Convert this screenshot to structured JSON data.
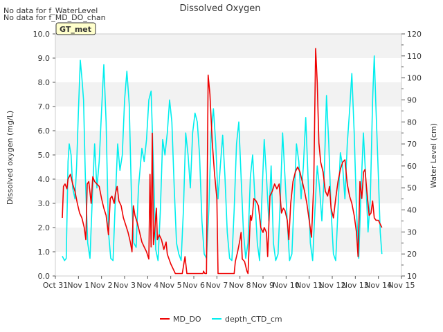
{
  "chart_data": {
    "type": "line",
    "title": "Dissolved Oxygen",
    "notes": [
      "No data for f_WaterLevel",
      "No data for f_MD_DO_chan"
    ],
    "badge": "GT_met",
    "xlabel": "",
    "ylabel_left": "Dissolved oxygen (mg/L)",
    "ylabel_right": "Water Level (cm)",
    "x_ticks": [
      "Oct 31",
      "Nov 1",
      "Nov 2",
      "Nov 3",
      "Nov 4",
      "Nov 5",
      "Nov 6",
      "Nov 7",
      "Nov 8",
      "Nov 9",
      "Nov 10",
      "Nov 11",
      "Nov 12",
      "Nov 13",
      "Nov 14",
      "Nov 15"
    ],
    "xlim": [
      0,
      15
    ],
    "ylim_left": [
      0,
      10
    ],
    "ylim_right": [
      10,
      120
    ],
    "y_ticks_left": [
      "0.0",
      "1.0",
      "2.0",
      "3.0",
      "4.0",
      "5.0",
      "6.0",
      "7.0",
      "8.0",
      "9.0",
      "10.0"
    ],
    "y_ticks_right": [
      "10",
      "20",
      "30",
      "40",
      "50",
      "60",
      "70",
      "80",
      "90",
      "100",
      "110",
      "120"
    ],
    "grid": "horizontal bands",
    "legend_position": "bottom-center",
    "series": [
      {
        "name": "MD_DO",
        "color": "#ee0000",
        "axis": "left",
        "points": [
          [
            0.3,
            2.4
          ],
          [
            0.35,
            3.7
          ],
          [
            0.42,
            3.8
          ],
          [
            0.5,
            3.6
          ],
          [
            0.55,
            4.0
          ],
          [
            0.65,
            4.2
          ],
          [
            0.75,
            3.8
          ],
          [
            0.85,
            3.5
          ],
          [
            0.95,
            3.0
          ],
          [
            1.05,
            2.6
          ],
          [
            1.15,
            2.4
          ],
          [
            1.25,
            2.0
          ],
          [
            1.32,
            1.5
          ],
          [
            1.38,
            3.8
          ],
          [
            1.45,
            3.9
          ],
          [
            1.55,
            3.0
          ],
          [
            1.62,
            4.1
          ],
          [
            1.7,
            3.9
          ],
          [
            1.8,
            3.8
          ],
          [
            1.9,
            3.7
          ],
          [
            2.0,
            3.2
          ],
          [
            2.1,
            2.8
          ],
          [
            2.2,
            2.5
          ],
          [
            2.3,
            1.7
          ],
          [
            2.38,
            3.2
          ],
          [
            2.45,
            3.3
          ],
          [
            2.55,
            3.0
          ],
          [
            2.6,
            3.4
          ],
          [
            2.68,
            3.7
          ],
          [
            2.75,
            3.1
          ],
          [
            2.85,
            2.9
          ],
          [
            2.95,
            2.4
          ],
          [
            3.05,
            2.1
          ],
          [
            3.15,
            1.8
          ],
          [
            3.25,
            1.4
          ],
          [
            3.32,
            1.0
          ],
          [
            3.38,
            2.9
          ],
          [
            3.45,
            2.5
          ],
          [
            3.55,
            2.2
          ],
          [
            3.65,
            1.8
          ],
          [
            3.75,
            1.4
          ],
          [
            3.85,
            1.2
          ],
          [
            3.95,
            1.0
          ],
          [
            4.05,
            0.7
          ],
          [
            4.1,
            4.2
          ],
          [
            4.15,
            1.2
          ],
          [
            4.2,
            5.9
          ],
          [
            4.25,
            1.3
          ],
          [
            4.3,
            1.8
          ],
          [
            4.38,
            2.8
          ],
          [
            4.42,
            1.5
          ],
          [
            4.5,
            1.7
          ],
          [
            4.6,
            1.5
          ],
          [
            4.7,
            1.1
          ],
          [
            4.8,
            1.4
          ],
          [
            4.85,
            0.9
          ],
          [
            5.0,
            0.5
          ],
          [
            5.1,
            0.3
          ],
          [
            5.2,
            0.1
          ],
          [
            5.5,
            0.1
          ],
          [
            5.62,
            0.8
          ],
          [
            5.7,
            0.1
          ],
          [
            6.4,
            0.1
          ],
          [
            6.42,
            0.2
          ],
          [
            6.48,
            0.1
          ],
          [
            6.55,
            0.1
          ],
          [
            6.62,
            8.3
          ],
          [
            6.7,
            7.5
          ],
          [
            6.8,
            5.5
          ],
          [
            6.9,
            4.2
          ],
          [
            7.0,
            3.2
          ],
          [
            7.05,
            0.1
          ],
          [
            7.5,
            0.1
          ],
          [
            7.75,
            0.1
          ],
          [
            7.8,
            0.6
          ],
          [
            7.9,
            1.0
          ],
          [
            8.0,
            1.5
          ],
          [
            8.05,
            1.8
          ],
          [
            8.1,
            0.7
          ],
          [
            8.2,
            0.6
          ],
          [
            8.3,
            0.2
          ],
          [
            8.35,
            0.1
          ],
          [
            8.45,
            2.5
          ],
          [
            8.5,
            2.3
          ],
          [
            8.55,
            2.6
          ],
          [
            8.6,
            3.2
          ],
          [
            8.7,
            3.1
          ],
          [
            8.8,
            2.9
          ],
          [
            8.9,
            2.0
          ],
          [
            9.0,
            1.8
          ],
          [
            9.05,
            2.0
          ],
          [
            9.15,
            1.8
          ],
          [
            9.2,
            0.8
          ],
          [
            9.3,
            3.3
          ],
          [
            9.4,
            3.5
          ],
          [
            9.5,
            3.8
          ],
          [
            9.6,
            3.6
          ],
          [
            9.7,
            3.8
          ],
          [
            9.8,
            2.6
          ],
          [
            9.88,
            2.8
          ],
          [
            9.95,
            2.7
          ],
          [
            10.05,
            2.3
          ],
          [
            10.12,
            1.5
          ],
          [
            10.2,
            3.0
          ],
          [
            10.3,
            3.9
          ],
          [
            10.4,
            4.3
          ],
          [
            10.5,
            4.5
          ],
          [
            10.6,
            4.3
          ],
          [
            10.7,
            3.9
          ],
          [
            10.8,
            3.5
          ],
          [
            10.9,
            3.0
          ],
          [
            11.0,
            2.3
          ],
          [
            11.1,
            1.6
          ],
          [
            11.2,
            3.8
          ],
          [
            11.28,
            9.4
          ],
          [
            11.35,
            8.0
          ],
          [
            11.42,
            5.5
          ],
          [
            11.5,
            4.7
          ],
          [
            11.6,
            4.3
          ],
          [
            11.7,
            3.5
          ],
          [
            11.8,
            3.3
          ],
          [
            11.88,
            3.7
          ],
          [
            11.95,
            2.8
          ],
          [
            12.05,
            2.4
          ],
          [
            12.15,
            3.2
          ],
          [
            12.25,
            3.9
          ],
          [
            12.35,
            4.4
          ],
          [
            12.45,
            4.7
          ],
          [
            12.55,
            4.8
          ],
          [
            12.65,
            3.8
          ],
          [
            12.75,
            3.3
          ],
          [
            12.85,
            3.0
          ],
          [
            12.95,
            2.5
          ],
          [
            13.05,
            1.8
          ],
          [
            13.12,
            0.8
          ],
          [
            13.2,
            3.9
          ],
          [
            13.28,
            3.2
          ],
          [
            13.36,
            4.3
          ],
          [
            13.42,
            4.4
          ],
          [
            13.5,
            3.5
          ],
          [
            13.55,
            3.0
          ],
          [
            13.6,
            2.5
          ],
          [
            13.68,
            2.6
          ],
          [
            13.75,
            3.1
          ],
          [
            13.82,
            2.4
          ],
          [
            13.9,
            2.3
          ],
          [
            14.0,
            2.3
          ],
          [
            14.1,
            2.1
          ],
          [
            14.15,
            2.0
          ]
        ]
      },
      {
        "name": "depth_CTD_cm",
        "color": "#00eeee",
        "axis": "right",
        "points": [
          [
            0.3,
            19
          ],
          [
            0.4,
            17
          ],
          [
            0.47,
            18
          ],
          [
            0.55,
            62
          ],
          [
            0.6,
            70
          ],
          [
            0.68,
            65
          ],
          [
            0.75,
            50
          ],
          [
            0.85,
            45
          ],
          [
            0.92,
            60
          ],
          [
            1.0,
            85
          ],
          [
            1.08,
            108
          ],
          [
            1.15,
            100
          ],
          [
            1.22,
            90
          ],
          [
            1.3,
            55
          ],
          [
            1.4,
            25
          ],
          [
            1.5,
            18
          ],
          [
            1.6,
            45
          ],
          [
            1.7,
            70
          ],
          [
            1.8,
            50
          ],
          [
            1.9,
            62
          ],
          [
            2.0,
            85
          ],
          [
            2.1,
            106
          ],
          [
            2.2,
            80
          ],
          [
            2.3,
            30
          ],
          [
            2.4,
            18
          ],
          [
            2.5,
            17
          ],
          [
            2.6,
            45
          ],
          [
            2.7,
            70
          ],
          [
            2.8,
            58
          ],
          [
            2.9,
            65
          ],
          [
            3.0,
            90
          ],
          [
            3.1,
            103
          ],
          [
            3.2,
            88
          ],
          [
            3.3,
            45
          ],
          [
            3.4,
            25
          ],
          [
            3.5,
            23
          ],
          [
            3.6,
            50
          ],
          [
            3.75,
            68
          ],
          [
            3.85,
            62
          ],
          [
            3.95,
            72
          ],
          [
            4.05,
            90
          ],
          [
            4.15,
            94
          ],
          [
            4.25,
            60
          ],
          [
            4.35,
            22
          ],
          [
            4.45,
            17
          ],
          [
            4.55,
            40
          ],
          [
            4.65,
            72
          ],
          [
            4.75,
            65
          ],
          [
            4.85,
            75
          ],
          [
            4.95,
            90
          ],
          [
            5.05,
            80
          ],
          [
            5.15,
            50
          ],
          [
            5.25,
            25
          ],
          [
            5.35,
            20
          ],
          [
            5.45,
            17
          ],
          [
            5.55,
            40
          ],
          [
            5.65,
            75
          ],
          [
            5.75,
            65
          ],
          [
            5.85,
            50
          ],
          [
            5.95,
            75
          ],
          [
            6.05,
            84
          ],
          [
            6.15,
            80
          ],
          [
            6.25,
            65
          ],
          [
            6.35,
            35
          ],
          [
            6.45,
            20
          ],
          [
            6.55,
            18
          ],
          [
            6.65,
            40
          ],
          [
            6.75,
            75
          ],
          [
            6.85,
            86
          ],
          [
            6.95,
            70
          ],
          [
            7.05,
            45
          ],
          [
            7.15,
            60
          ],
          [
            7.25,
            74
          ],
          [
            7.35,
            55
          ],
          [
            7.45,
            30
          ],
          [
            7.55,
            18
          ],
          [
            7.65,
            17
          ],
          [
            7.75,
            40
          ],
          [
            7.85,
            70
          ],
          [
            7.95,
            80
          ],
          [
            8.05,
            55
          ],
          [
            8.15,
            30
          ],
          [
            8.25,
            18
          ],
          [
            8.35,
            25
          ],
          [
            8.45,
            55
          ],
          [
            8.55,
            65
          ],
          [
            8.65,
            45
          ],
          [
            8.75,
            25
          ],
          [
            8.85,
            17
          ],
          [
            8.95,
            45
          ],
          [
            9.05,
            72
          ],
          [
            9.15,
            55
          ],
          [
            9.25,
            35
          ],
          [
            9.35,
            60
          ],
          [
            9.45,
            25
          ],
          [
            9.55,
            17
          ],
          [
            9.65,
            20
          ],
          [
            9.75,
            45
          ],
          [
            9.85,
            75
          ],
          [
            9.95,
            55
          ],
          [
            10.05,
            35
          ],
          [
            10.15,
            17
          ],
          [
            10.25,
            20
          ],
          [
            10.35,
            45
          ],
          [
            10.45,
            70
          ],
          [
            10.55,
            62
          ],
          [
            10.65,
            45
          ],
          [
            10.75,
            60
          ],
          [
            10.85,
            82
          ],
          [
            10.95,
            55
          ],
          [
            11.05,
            25
          ],
          [
            11.15,
            17
          ],
          [
            11.25,
            40
          ],
          [
            11.35,
            60
          ],
          [
            11.45,
            50
          ],
          [
            11.55,
            35
          ],
          [
            11.65,
            55
          ],
          [
            11.75,
            92
          ],
          [
            11.85,
            70
          ],
          [
            11.95,
            40
          ],
          [
            12.05,
            20
          ],
          [
            12.15,
            17
          ],
          [
            12.25,
            40
          ],
          [
            12.35,
            66
          ],
          [
            12.45,
            60
          ],
          [
            12.55,
            45
          ],
          [
            12.65,
            70
          ],
          [
            12.75,
            85
          ],
          [
            12.85,
            102
          ],
          [
            12.95,
            75
          ],
          [
            13.05,
            40
          ],
          [
            13.15,
            18
          ],
          [
            13.25,
            50
          ],
          [
            13.35,
            75
          ],
          [
            13.45,
            55
          ],
          [
            13.55,
            30
          ],
          [
            13.65,
            45
          ],
          [
            13.75,
            90
          ],
          [
            13.82,
            110
          ],
          [
            13.9,
            85
          ],
          [
            14.0,
            55
          ],
          [
            14.08,
            30
          ],
          [
            14.15,
            20
          ]
        ]
      }
    ]
  }
}
